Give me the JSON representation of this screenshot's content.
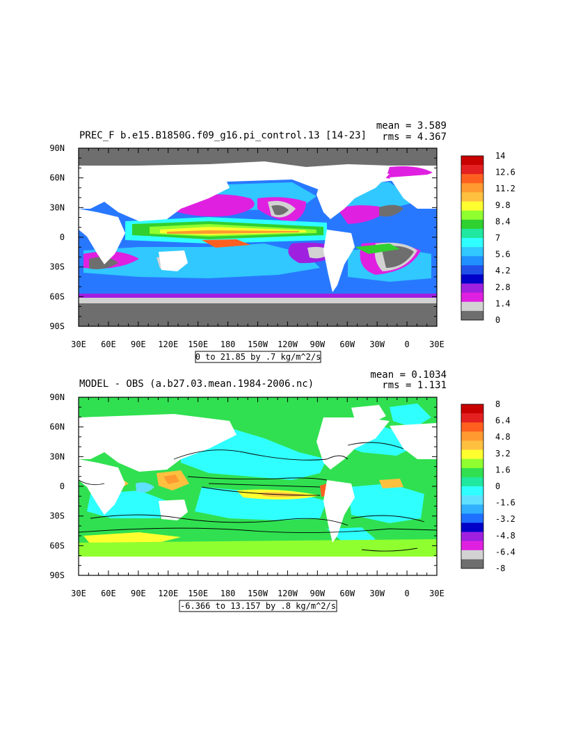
{
  "chart_data": [
    {
      "type": "heatmap",
      "title": "PREC_F b.e15.B1850G.f09_g16.pi_control.13 [14-23]",
      "stats": {
        "mean": "mean = 3.589",
        "rms": "rms = 4.367"
      },
      "xlabel": "",
      "ylabel": "",
      "x_ticks": [
        "30E",
        "60E",
        "90E",
        "120E",
        "150E",
        "180",
        "150W",
        "120W",
        "90W",
        "60W",
        "30W",
        "0",
        "30E"
      ],
      "y_ticks": [
        "90N",
        "60N",
        "30N",
        "0",
        "30S",
        "60S",
        "90S"
      ],
      "contour_note": "0 to 21.85 by .7 kg/m^2/s",
      "colorbar": {
        "labels": [
          "14",
          "12.6",
          "11.2",
          "9.8",
          "8.4",
          "7",
          "5.6",
          "4.2",
          "2.8",
          "1.4",
          "0"
        ],
        "colors": [
          "#c80000",
          "#e42020",
          "#ff6020",
          "#ff9a30",
          "#ffc040",
          "#ffff30",
          "#90ff30",
          "#30d030",
          "#20e8a0",
          "#30ffff",
          "#30c8ff",
          "#2090ff",
          "#2050e8",
          "#0000c8",
          "#a020e0",
          "#e020e0",
          "#d2d2d2",
          "#6e6e6e"
        ]
      }
    },
    {
      "type": "heatmap",
      "title": "MODEL - OBS (a.b27.03.mean.1984-2006.nc)",
      "stats": {
        "mean": "mean = 0.1034",
        "rms": "rms = 1.131"
      },
      "xlabel": "",
      "ylabel": "",
      "x_ticks": [
        "30E",
        "60E",
        "90E",
        "120E",
        "150E",
        "180",
        "150W",
        "120W",
        "90W",
        "60W",
        "30W",
        "0",
        "30E"
      ],
      "y_ticks": [
        "90N",
        "60N",
        "30N",
        "0",
        "30S",
        "60S",
        "90S"
      ],
      "contour_note": "-6.366 to 13.157 by .8 kg/m^2/s",
      "colorbar": {
        "labels": [
          "8",
          "6.4",
          "4.8",
          "3.2",
          "1.6",
          "0",
          "-1.6",
          "-3.2",
          "-4.8",
          "-6.4",
          "-8"
        ],
        "colors": [
          "#c80000",
          "#e42020",
          "#ff6020",
          "#ff9a30",
          "#ffc040",
          "#ffff30",
          "#90ff30",
          "#30e050",
          "#20e8a0",
          "#30ffff",
          "#60e0ff",
          "#30b0ff",
          "#2070ff",
          "#0000c8",
          "#a020e0",
          "#e020e0",
          "#d2d2d2",
          "#6e6e6e"
        ]
      }
    }
  ]
}
